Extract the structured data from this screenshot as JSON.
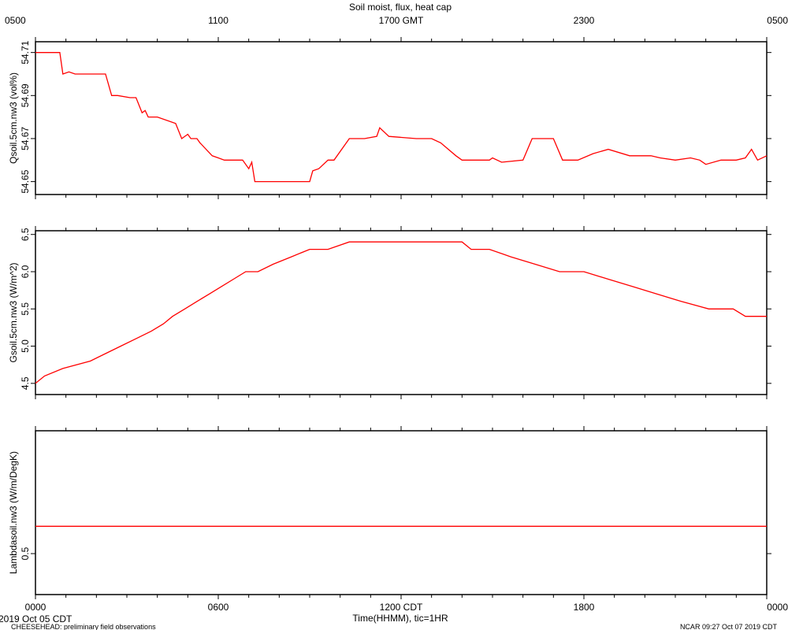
{
  "figure": {
    "title": "Soil moist, flux, heat cap",
    "top_axis_labels": [
      "0500",
      "1100",
      "1700 GMT",
      "2300",
      "0500"
    ],
    "bottom_axis_labels": [
      "0000",
      "0600",
      "1200 CDT",
      "1800",
      "0000"
    ],
    "xlabel": "Time(HHMM), tic=1HR",
    "date_label": "2019 Oct 05 CDT",
    "footer_left": "CHEESEHEAD: preliminary field observations",
    "footer_right": "NCAR 09:27 Oct 07 2019 CDT",
    "line_color": "#ff0000"
  },
  "chart_data": [
    {
      "type": "line",
      "ylabel": "Qsoil.5cm.nw3 (vol%)",
      "ylim": [
        54.644,
        54.715
      ],
      "yticks": [
        54.65,
        54.67,
        54.69,
        54.71
      ],
      "ytick_labels": [
        "54.65",
        "54.67",
        "54.69",
        "54.71"
      ],
      "xlim": [
        0,
        24
      ],
      "x": [
        0,
        0.8,
        0.9,
        1.1,
        1.3,
        1.5,
        2.3,
        2.5,
        2.7,
        3.1,
        3.3,
        3.5,
        3.6,
        3.7,
        4.0,
        4.6,
        4.8,
        5.0,
        5.1,
        5.3,
        5.4,
        5.8,
        6.0,
        6.2,
        6.8,
        7.0,
        7.1,
        7.2,
        8.0,
        8.5,
        9.0,
        9.1,
        9.3,
        9.6,
        9.8,
        10.3,
        10.8,
        11.2,
        11.3,
        11.6,
        12.5,
        13.0,
        13.3,
        13.8,
        14.0,
        14.1,
        14.9,
        15.0,
        15.3,
        16.0,
        16.3,
        16.5,
        17.0,
        17.3,
        17.8,
        18.3,
        18.8,
        19.5,
        20.2,
        20.5,
        21.0,
        21.5,
        21.8,
        22.0,
        22.5,
        23.0,
        23.3,
        23.5,
        23.7,
        24
      ],
      "values": [
        54.71,
        54.71,
        54.7,
        54.701,
        54.7,
        54.7,
        54.7,
        54.69,
        54.69,
        54.689,
        54.689,
        54.682,
        54.683,
        54.68,
        54.68,
        54.677,
        54.67,
        54.672,
        54.67,
        54.67,
        54.668,
        54.662,
        54.661,
        54.66,
        54.66,
        54.656,
        54.659,
        54.65,
        54.65,
        54.65,
        54.65,
        54.655,
        54.656,
        54.66,
        54.66,
        54.67,
        54.67,
        54.671,
        54.675,
        54.671,
        54.67,
        54.67,
        54.668,
        54.662,
        54.66,
        54.66,
        54.66,
        54.661,
        54.659,
        54.66,
        54.67,
        54.67,
        54.67,
        54.66,
        54.66,
        54.663,
        54.665,
        54.662,
        54.662,
        54.661,
        54.66,
        54.661,
        54.66,
        54.658,
        54.66,
        54.66,
        54.661,
        54.665,
        54.66,
        54.662
      ]
    },
    {
      "type": "line",
      "ylabel": "Gsoil.5cm.nw3 (W/m^2)",
      "ylim": [
        4.35,
        6.55
      ],
      "yticks": [
        4.5,
        5.0,
        5.5,
        6.0,
        6.5
      ],
      "ytick_labels": [
        "4.5",
        "5.0",
        "5.5",
        "6.0",
        "6.5"
      ],
      "xlim": [
        0,
        24
      ],
      "x": [
        0,
        0.3,
        0.9,
        1.8,
        2.3,
        2.8,
        3.3,
        3.8,
        4.2,
        4.5,
        4.9,
        5.3,
        5.7,
        6.1,
        6.5,
        6.9,
        7.3,
        7.8,
        8.4,
        9.0,
        9.6,
        10.3,
        11.1,
        12.0,
        13.0,
        14.0,
        14.3,
        14.9,
        15.6,
        16.4,
        17.2,
        18.0,
        18.8,
        19.6,
        20.4,
        21.2,
        22.1,
        22.9,
        23.3,
        24
      ],
      "values": [
        4.5,
        4.6,
        4.7,
        4.8,
        4.9,
        5.0,
        5.1,
        5.2,
        5.3,
        5.4,
        5.5,
        5.6,
        5.7,
        5.8,
        5.9,
        6.0,
        6.0,
        6.1,
        6.2,
        6.3,
        6.3,
        6.4,
        6.4,
        6.4,
        6.4,
        6.4,
        6.3,
        6.3,
        6.2,
        6.1,
        6.0,
        6.0,
        5.9,
        5.8,
        5.7,
        5.6,
        5.5,
        5.5,
        5.4,
        5.4
      ]
    },
    {
      "type": "line",
      "ylabel": "Lambdasoil.nw3 (W/m/DegK)",
      "ylim": [
        0.35,
        0.95
      ],
      "yticks": [
        0.5
      ],
      "ytick_labels": [
        "0.5"
      ],
      "xlim": [
        0,
        24
      ],
      "x": [
        0,
        24
      ],
      "values": [
        0.6,
        0.6
      ]
    }
  ]
}
